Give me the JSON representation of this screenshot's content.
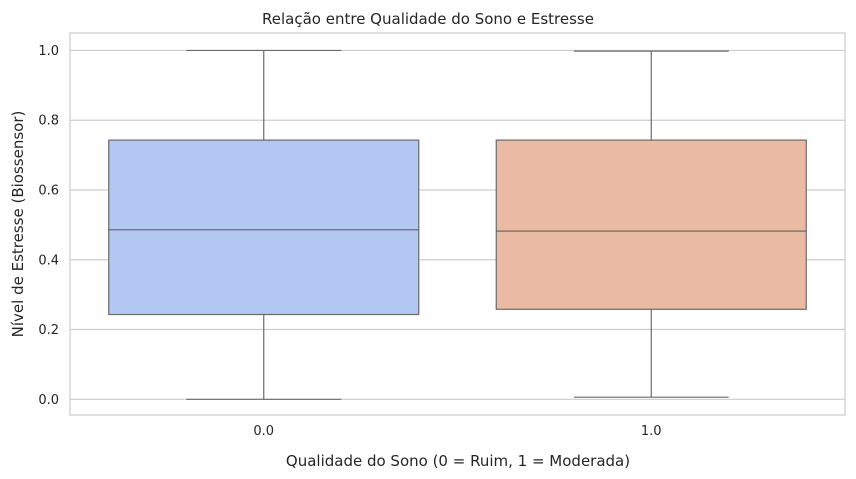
{
  "chart_data": {
    "type": "box",
    "title": "Relação entre Qualidade do Sono e Estresse",
    "xlabel": "Qualidade do Sono (0 = Ruim, 1 = Moderada)",
    "ylabel": "Nível de Estresse (Biossensor)",
    "ylim": [
      -0.045,
      1.05
    ],
    "yticks": [
      0.0,
      0.2,
      0.4,
      0.6,
      0.8,
      1.0
    ],
    "ytick_labels": [
      "0.0",
      "0.2",
      "0.4",
      "0.6",
      "0.8",
      "1.0"
    ],
    "grid": true,
    "categories": [
      "0.0",
      "1.0"
    ],
    "boxes": [
      {
        "category": "0.0",
        "whisker_low": 0.0,
        "q1": 0.243,
        "median": 0.486,
        "q3": 0.743,
        "whisker_high": 1.0,
        "color": "#b3c7f3"
      },
      {
        "category": "1.0",
        "whisker_low": 0.006,
        "q1": 0.258,
        "median": 0.482,
        "q3": 0.743,
        "whisker_high": 0.998,
        "color": "#ebbaa3"
      }
    ]
  }
}
